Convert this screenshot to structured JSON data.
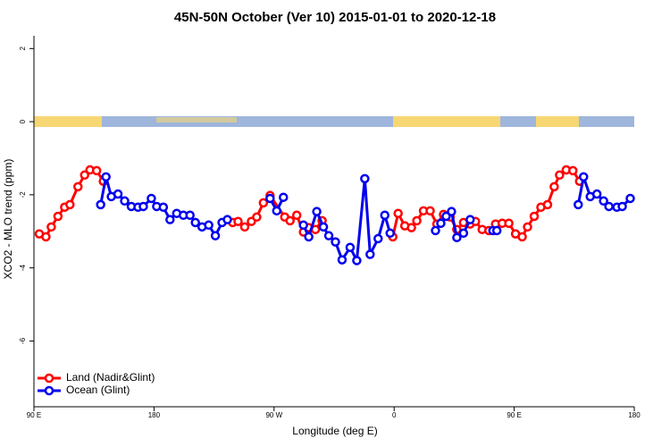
{
  "chart_data": {
    "type": "line",
    "title": "45N-50N October (Ver 10)   2015-01-01 to 2020-12-18",
    "x_label": "Longitude (deg E)",
    "y_label": "XCO2 - MLO trend (ppm)",
    "xlim": [
      90,
      540
    ],
    "xticks": [
      {
        "value": 90,
        "label": "90 E"
      },
      180,
      {
        "value": 270,
        "label": "90 W"
      },
      {
        "value": 360,
        "label": "0"
      },
      {
        "value": 450,
        "label": "90 E"
      },
      {
        "value": 540,
        "label": "180"
      }
    ],
    "ylim": [
      -7.8,
      2.35
    ],
    "yticks": [
      2,
      0,
      -2,
      -4,
      -6
    ],
    "legend": "bottom-left",
    "series": [
      {
        "name": "Land (Nadir&Glint)",
        "color": "#ff0000",
        "x": [
          94,
          99,
          103,
          108,
          113,
          117,
          123,
          128,
          132,
          137,
          142,
          null,
          239,
          243,
          248,
          253,
          257,
          262,
          267,
          278,
          282,
          287,
          292,
          296,
          301,
          306,
          null,
          359,
          363,
          368,
          373,
          377,
          382,
          387,
          392,
          397,
          402,
          407,
          412,
          417,
          421,
          426,
          431,
          436,
          441,
          446,
          451,
          456,
          460,
          465,
          470,
          475,
          480,
          484,
          489,
          494,
          499
        ],
        "values": [
          -3.07,
          -3.15,
          -2.88,
          -2.59,
          -2.34,
          -2.27,
          -1.78,
          -1.46,
          -1.32,
          -1.34,
          -1.63,
          null,
          -2.76,
          -2.73,
          -2.88,
          -2.73,
          -2.61,
          -2.22,
          -2.02,
          -2.61,
          -2.71,
          -2.56,
          -3.02,
          -2.9,
          -2.95,
          -2.71,
          null,
          -3.15,
          -2.51,
          -2.85,
          -2.9,
          -2.71,
          -2.44,
          -2.44,
          -2.8,
          -2.54,
          -2.61,
          -2.95,
          -2.76,
          -2.8,
          -2.73,
          -2.95,
          -2.98,
          -2.8,
          -2.78,
          -2.78,
          -3.07,
          -3.15,
          -2.88,
          -2.59,
          -2.34,
          -2.27,
          -1.78,
          -1.46,
          -1.32,
          -1.34,
          -1.63
        ]
      },
      {
        "name": "Ocean (Glint)",
        "color": "#0000ee",
        "x": [
          140,
          144,
          148,
          153,
          158,
          163,
          168,
          172,
          178,
          182,
          187,
          192,
          197,
          202,
          207,
          211,
          216,
          221,
          226,
          231,
          235,
          null,
          267,
          272,
          277,
          null,
          292,
          296,
          302,
          307,
          311,
          316,
          321,
          327,
          332,
          338,
          342,
          348,
          353,
          357,
          null,
          391,
          395,
          399,
          403,
          407,
          412,
          417,
          null,
          434,
          437,
          null,
          498,
          502,
          507,
          512,
          517,
          521,
          527,
          531,
          537
        ],
        "values": [
          -2.27,
          -1.51,
          -2.05,
          -1.98,
          -2.17,
          -2.32,
          -2.34,
          -2.32,
          -2.1,
          -2.32,
          -2.34,
          -2.68,
          -2.51,
          -2.56,
          -2.56,
          -2.76,
          -2.88,
          -2.83,
          -3.12,
          -2.76,
          -2.68,
          null,
          -2.1,
          -2.44,
          -2.07,
          null,
          -2.83,
          -3.15,
          -2.46,
          -2.88,
          -3.12,
          -3.29,
          -3.78,
          -3.44,
          -3.8,
          -1.56,
          -3.63,
          -3.2,
          -2.56,
          -3.05,
          null,
          -2.98,
          -2.78,
          -2.59,
          -2.46,
          -3.17,
          -3.05,
          -2.68,
          null,
          -2.98,
          -2.98,
          null,
          -2.27,
          -1.51,
          -2.05,
          -1.98,
          -2.17,
          -2.32,
          -2.34,
          -2.32,
          -2.1
        ]
      }
    ]
  }
}
